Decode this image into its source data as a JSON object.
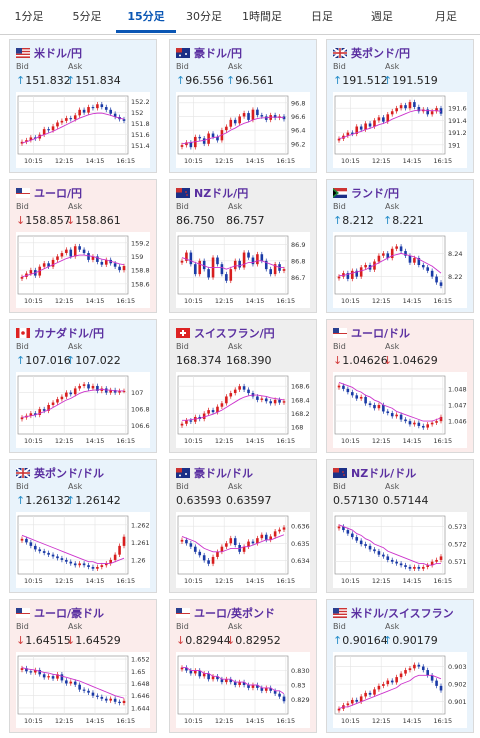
{
  "tabs": [
    {
      "label": "1分足"
    },
    {
      "label": "5分足"
    },
    {
      "label": "15分足",
      "active": true
    },
    {
      "label": "30分足"
    },
    {
      "label": "1時間足"
    },
    {
      "label": "日足"
    },
    {
      "label": "週足"
    },
    {
      "label": "月足"
    }
  ],
  "colors": {
    "up_candle": "#d81e1e",
    "down_candle": "#1a3aa6",
    "ma_line": "#cc33cc",
    "up_arrow": "#2a8fc9",
    "down_arrow": "#d23c3c"
  },
  "cards": [
    {
      "name": "米ドル/円",
      "flag": "us-flag",
      "trend": "up",
      "bid_label": "Bid",
      "ask_label": "Ask",
      "bid": "151.832",
      "ask": "151.834",
      "x_ticks": [
        "10:15",
        "12:15",
        "14:15",
        "16:15"
      ],
      "y_ticks": [
        "152.2",
        "152",
        "151.8",
        "151.6",
        "151.4"
      ],
      "ylim": [
        151.25,
        152.3
      ],
      "closes": [
        151.47,
        151.5,
        151.55,
        151.53,
        151.6,
        151.7,
        151.68,
        151.75,
        151.82,
        151.85,
        151.9,
        151.88,
        151.95,
        152.05,
        152.0,
        152.1,
        152.08,
        152.15,
        152.1,
        152.05,
        151.98,
        151.92,
        151.88,
        151.85
      ],
      "ma": [
        151.45,
        151.47,
        151.5,
        151.53,
        151.57,
        151.6,
        151.63,
        151.66,
        151.7,
        151.74,
        151.78,
        151.82,
        151.86,
        151.9,
        151.93,
        151.96,
        151.98,
        151.99,
        151.99,
        151.97,
        151.95,
        151.92,
        151.9,
        151.88
      ]
    },
    {
      "name": "豪ドル/円",
      "flag": "au-flag",
      "trend": "up",
      "bid_label": "Bid",
      "ask_label": "Ask",
      "bid": "96.556",
      "ask": "96.561",
      "x_ticks": [
        "10:15",
        "12:15",
        "14:15",
        "16:15"
      ],
      "y_ticks": [
        "96.8",
        "96.6",
        "96.4",
        "96.2"
      ],
      "ylim": [
        96.05,
        96.9
      ],
      "closes": [
        96.18,
        96.22,
        96.15,
        96.3,
        96.28,
        96.2,
        96.35,
        96.3,
        96.25,
        96.4,
        96.45,
        96.55,
        96.5,
        96.6,
        96.65,
        96.55,
        96.7,
        96.62,
        96.6,
        96.55,
        96.62,
        96.58,
        96.6,
        96.56
      ],
      "ma": [
        96.2,
        96.21,
        96.22,
        96.23,
        96.24,
        96.25,
        96.27,
        96.29,
        96.3,
        96.33,
        96.36,
        96.4,
        96.43,
        96.47,
        96.5,
        96.52,
        96.55,
        96.57,
        96.58,
        96.58,
        96.59,
        96.59,
        96.59,
        96.58
      ]
    },
    {
      "name": "英ポンド/円",
      "flag": "gb-flag",
      "trend": "up",
      "bid_label": "Bid",
      "ask_label": "Ask",
      "bid": "191.512",
      "ask": "191.519",
      "x_ticks": [
        "10:15",
        "12:15",
        "14:15",
        "16:15"
      ],
      "y_ticks": [
        "191.6",
        "191.4",
        "191.2",
        "191"
      ],
      "ylim": [
        190.85,
        191.8
      ],
      "closes": [
        191.1,
        191.15,
        191.2,
        191.18,
        191.3,
        191.25,
        191.35,
        191.3,
        191.4,
        191.45,
        191.38,
        191.5,
        191.55,
        191.6,
        191.65,
        191.6,
        191.7,
        191.62,
        191.55,
        191.58,
        191.5,
        191.55,
        191.6,
        191.51
      ],
      "ma": [
        191.1,
        191.12,
        191.15,
        191.17,
        191.2,
        191.22,
        191.25,
        191.27,
        191.3,
        191.33,
        191.35,
        191.38,
        191.42,
        191.45,
        191.48,
        191.51,
        191.54,
        191.56,
        191.57,
        191.57,
        191.56,
        191.56,
        191.56,
        191.55
      ]
    },
    {
      "name": "ユーロ/円",
      "flag": "eu-flag",
      "trend": "down",
      "bid_label": "Bid",
      "ask_label": "Ask",
      "bid": "158.857",
      "ask": "158.861",
      "x_ticks": [
        "10:15",
        "12:15",
        "14:15",
        "16:15"
      ],
      "y_ticks": [
        "159.2",
        "159",
        "158.8",
        "158.6"
      ],
      "ylim": [
        158.45,
        159.3
      ],
      "closes": [
        158.7,
        158.75,
        158.8,
        158.72,
        158.85,
        158.9,
        158.85,
        158.95,
        159.0,
        159.05,
        159.1,
        159.0,
        159.15,
        159.1,
        159.05,
        158.95,
        159.0,
        158.92,
        158.88,
        158.95,
        158.9,
        158.85,
        158.8,
        158.86
      ],
      "ma": [
        158.7,
        158.72,
        158.74,
        158.76,
        158.79,
        158.82,
        158.85,
        158.88,
        158.91,
        158.94,
        158.97,
        158.99,
        159.01,
        159.02,
        159.02,
        159.01,
        159.0,
        158.98,
        158.96,
        158.95,
        158.93,
        158.91,
        158.89,
        158.88
      ]
    },
    {
      "name": "NZドル/円",
      "flag": "nz-flag",
      "trend": "flat",
      "bid_label": "Bid",
      "ask_label": "Ask",
      "bid": "86.750",
      "ask": "86.757",
      "x_ticks": [
        "10:15",
        "12:15",
        "14:15",
        "16:15"
      ],
      "y_ticks": [
        "86.9",
        "86.8",
        "86.7"
      ],
      "ylim": [
        86.6,
        86.95
      ],
      "closes": [
        86.8,
        86.85,
        86.78,
        86.72,
        86.8,
        86.75,
        86.7,
        86.82,
        86.78,
        86.72,
        86.68,
        86.75,
        86.8,
        86.76,
        86.85,
        86.82,
        86.78,
        86.84,
        86.8,
        86.75,
        86.72,
        86.78,
        86.74,
        86.75
      ],
      "ma": [
        86.82,
        86.81,
        86.8,
        86.79,
        86.78,
        86.77,
        86.76,
        86.76,
        86.76,
        86.76,
        86.75,
        86.76,
        86.77,
        86.77,
        86.78,
        86.79,
        86.79,
        86.8,
        86.8,
        86.79,
        86.78,
        86.77,
        86.76,
        86.76
      ]
    },
    {
      "name": "ランド/円",
      "flag": "za-flag",
      "trend": "up",
      "bid_label": "Bid",
      "ask_label": "Ask",
      "bid": "8.212",
      "ask": "8.221",
      "x_ticks": [
        "10:15",
        "12:15",
        "14:15",
        "16:15"
      ],
      "y_ticks": [
        "8.24",
        "8.22"
      ],
      "ylim": [
        8.205,
        8.255
      ],
      "closes": [
        8.22,
        8.223,
        8.218,
        8.225,
        8.22,
        8.228,
        8.23,
        8.226,
        8.233,
        8.238,
        8.24,
        8.236,
        8.244,
        8.246,
        8.242,
        8.238,
        8.232,
        8.236,
        8.23,
        8.228,
        8.225,
        8.22,
        8.215,
        8.212
      ],
      "ma": [
        8.221,
        8.221,
        8.222,
        8.223,
        8.224,
        8.225,
        8.226,
        8.228,
        8.23,
        8.232,
        8.234,
        8.236,
        8.238,
        8.239,
        8.24,
        8.239,
        8.238,
        8.237,
        8.235,
        8.233,
        8.231,
        8.229,
        8.226,
        8.223
      ]
    },
    {
      "name": "カナダドル/円",
      "flag": "ca-flag",
      "trend": "up",
      "bid_label": "Bid",
      "ask_label": "Ask",
      "bid": "107.016",
      "ask": "107.022",
      "x_ticks": [
        "10:15",
        "12:15",
        "14:15",
        "16:15"
      ],
      "y_ticks": [
        "107",
        "106.8",
        "106.6"
      ],
      "ylim": [
        106.5,
        107.2
      ],
      "closes": [
        106.7,
        106.72,
        106.75,
        106.73,
        106.8,
        106.78,
        106.85,
        106.88,
        106.92,
        106.95,
        107.0,
        106.98,
        107.05,
        107.08,
        107.1,
        107.05,
        107.08,
        107.02,
        107.05,
        107.0,
        107.03,
        107.0,
        107.02,
        107.02
      ],
      "ma": [
        106.7,
        106.71,
        106.72,
        106.73,
        106.75,
        106.77,
        106.79,
        106.82,
        106.85,
        106.88,
        106.91,
        106.93,
        106.96,
        106.99,
        107.01,
        107.02,
        107.03,
        107.03,
        107.04,
        107.03,
        107.03,
        107.02,
        107.02,
        107.02
      ]
    },
    {
      "name": "スイスフラン/円",
      "flag": "ch-flag",
      "trend": "flat",
      "bid_label": "Bid",
      "ask_label": "Ask",
      "bid": "168.374",
      "ask": "168.390",
      "x_ticks": [
        "10:15",
        "12:15",
        "14:15",
        "16:15"
      ],
      "y_ticks": [
        "168.6",
        "168.4",
        "168.2",
        "168"
      ],
      "ylim": [
        167.9,
        168.75
      ],
      "closes": [
        168.05,
        168.1,
        168.08,
        168.15,
        168.12,
        168.2,
        168.25,
        168.22,
        168.3,
        168.35,
        168.45,
        168.5,
        168.55,
        168.6,
        168.55,
        168.5,
        168.45,
        168.4,
        168.42,
        168.38,
        168.35,
        168.4,
        168.36,
        168.38
      ],
      "ma": [
        168.1,
        168.1,
        168.11,
        168.12,
        168.13,
        168.15,
        168.17,
        168.19,
        168.22,
        168.25,
        168.29,
        168.33,
        168.37,
        168.41,
        168.44,
        168.46,
        168.47,
        168.47,
        168.46,
        168.45,
        168.43,
        168.42,
        168.41,
        168.4
      ]
    },
    {
      "name": "ユーロ/ドル",
      "flag": "eu-flag",
      "trend": "down",
      "bid_label": "Bid",
      "ask_label": "Ask",
      "bid": "1.04626",
      "ask": "1.04629",
      "x_ticks": [
        "10:15",
        "12:15",
        "14:15",
        "16:15"
      ],
      "y_ticks": [
        "1.048",
        "1.047",
        "1.046"
      ],
      "ylim": [
        1.0452,
        1.0488
      ],
      "closes": [
        1.0482,
        1.048,
        1.0478,
        1.0476,
        1.0474,
        1.0475,
        1.0471,
        1.047,
        1.0468,
        1.047,
        1.0466,
        1.0465,
        1.0463,
        1.0464,
        1.0461,
        1.046,
        1.0458,
        1.0459,
        1.0457,
        1.0456,
        1.0458,
        1.0459,
        1.046,
        1.04626
      ],
      "ma": [
        1.0484,
        1.0483,
        1.0482,
        1.0481,
        1.0479,
        1.0478,
        1.0476,
        1.0475,
        1.0473,
        1.0472,
        1.047,
        1.0469,
        1.0468,
        1.0466,
        1.0465,
        1.0464,
        1.0463,
        1.0462,
        1.0461,
        1.046,
        1.046,
        1.046,
        1.0461,
        1.0462
      ]
    },
    {
      "name": "英ポンド/ドル",
      "flag": "gb-flag",
      "trend": "up",
      "bid_label": "Bid",
      "ask_label": "Ask",
      "bid": "1.26132",
      "ask": "1.26142",
      "x_ticks": [
        "10:15",
        "12:15",
        "14:15",
        "16:15"
      ],
      "y_ticks": [
        "1.262",
        "1.261",
        "1.26"
      ],
      "ylim": [
        1.2592,
        1.2625
      ],
      "closes": [
        1.2612,
        1.261,
        1.2608,
        1.2606,
        1.2605,
        1.2604,
        1.2603,
        1.2602,
        1.2601,
        1.26,
        1.2599,
        1.2598,
        1.2597,
        1.2598,
        1.2597,
        1.2596,
        1.2595,
        1.2596,
        1.2597,
        1.2598,
        1.26,
        1.2603,
        1.2608,
        1.26132
      ],
      "ma": [
        1.2614,
        1.2613,
        1.2612,
        1.2611,
        1.261,
        1.2609,
        1.2608,
        1.2607,
        1.2606,
        1.2605,
        1.2604,
        1.2603,
        1.2602,
        1.2601,
        1.26,
        1.2599,
        1.2599,
        1.2598,
        1.2598,
        1.2598,
        1.2598,
        1.2599,
        1.26,
        1.2601
      ]
    },
    {
      "name": "豪ドル/ドル",
      "flag": "au-flag",
      "trend": "flat",
      "bid_label": "Bid",
      "ask_label": "Ask",
      "bid": "0.63593",
      "ask": "0.63597",
      "x_ticks": [
        "10:15",
        "12:15",
        "14:15",
        "16:15"
      ],
      "y_ticks": [
        "0.636",
        "0.635",
        "0.634"
      ],
      "ylim": [
        0.6332,
        0.6366
      ],
      "closes": [
        0.6352,
        0.635,
        0.6348,
        0.6345,
        0.6343,
        0.634,
        0.6338,
        0.6342,
        0.6345,
        0.6348,
        0.635,
        0.6353,
        0.6349,
        0.6345,
        0.6348,
        0.6351,
        0.635,
        0.6353,
        0.6355,
        0.6352,
        0.6354,
        0.6357,
        0.6358,
        0.63593
      ],
      "ma": [
        0.6354,
        0.6353,
        0.6352,
        0.6351,
        0.6349,
        0.6347,
        0.6346,
        0.6345,
        0.6345,
        0.6345,
        0.6346,
        0.6347,
        0.6347,
        0.6347,
        0.6348,
        0.6348,
        0.6349,
        0.635,
        0.6351,
        0.6352,
        0.6352,
        0.6353,
        0.6354,
        0.6355
      ]
    },
    {
      "name": "NZドル/ドル",
      "flag": "nz-flag",
      "trend": "flat",
      "bid_label": "Bid",
      "ask_label": "Ask",
      "bid": "0.57130",
      "ask": "0.57144",
      "x_ticks": [
        "10:15",
        "12:15",
        "14:15",
        "16:15"
      ],
      "y_ticks": [
        "0.573",
        "0.572",
        "0.571"
      ],
      "ylim": [
        0.5703,
        0.5736
      ],
      "closes": [
        0.573,
        0.5728,
        0.5726,
        0.5724,
        0.5722,
        0.572,
        0.5719,
        0.5717,
        0.5716,
        0.5714,
        0.5713,
        0.5711,
        0.571,
        0.5709,
        0.5708,
        0.5707,
        0.5706,
        0.5707,
        0.5706,
        0.5707,
        0.5708,
        0.571,
        0.5711,
        0.5713
      ],
      "ma": [
        0.5731,
        0.573,
        0.5729,
        0.5728,
        0.5726,
        0.5725,
        0.5723,
        0.5722,
        0.572,
        0.5719,
        0.5718,
        0.5716,
        0.5715,
        0.5714,
        0.5713,
        0.5712,
        0.5711,
        0.571,
        0.5709,
        0.5709,
        0.5708,
        0.5708,
        0.5709,
        0.5709
      ]
    },
    {
      "name": "ユーロ/豪ドル",
      "flag": "eu-flag",
      "trend": "down",
      "bid_label": "Bid",
      "ask_label": "Ask",
      "bid": "1.64515",
      "ask": "1.64529",
      "x_ticks": [
        "10:15",
        "12:15",
        "14:15",
        "16:15"
      ],
      "y_ticks": [
        "1.652",
        "1.65",
        "1.648",
        "1.646",
        "1.644"
      ],
      "ylim": [
        1.643,
        1.6525
      ],
      "closes": [
        1.6505,
        1.65,
        1.6498,
        1.6502,
        1.6495,
        1.649,
        1.6492,
        1.6488,
        1.6495,
        1.6485,
        1.648,
        1.6483,
        1.6478,
        1.647,
        1.6468,
        1.6465,
        1.646,
        1.6458,
        1.6455,
        1.6452,
        1.6455,
        1.645,
        1.6448,
        1.64515
      ],
      "ma": [
        1.6506,
        1.6504,
        1.6503,
        1.6502,
        1.65,
        1.6498,
        1.6497,
        1.6495,
        1.6494,
        1.6492,
        1.649,
        1.6488,
        1.6486,
        1.6484,
        1.6481,
        1.6478,
        1.6475,
        1.6472,
        1.6469,
        1.6466,
        1.6463,
        1.646,
        1.6458,
        1.6456
      ]
    },
    {
      "name": "ユーロ/英ポンド",
      "flag": "eu-flag",
      "trend": "down",
      "bid_label": "Bid",
      "ask_label": "Ask",
      "bid": "0.82944",
      "ask": "0.82952",
      "x_ticks": [
        "10:15",
        "12:15",
        "14:15",
        "16:15"
      ],
      "y_ticks": [
        "0.8305",
        "0.83",
        "0.8295"
      ],
      "ylim": [
        0.829,
        0.831
      ],
      "closes": [
        0.8306,
        0.8305,
        0.8304,
        0.8305,
        0.8303,
        0.8304,
        0.8302,
        0.8303,
        0.8302,
        0.8301,
        0.8302,
        0.8301,
        0.83,
        0.8301,
        0.83,
        0.8299,
        0.83,
        0.8299,
        0.8298,
        0.8299,
        0.8298,
        0.8297,
        0.8296,
        0.82944
      ],
      "ma": [
        0.8306,
        0.8306,
        0.8305,
        0.8305,
        0.8305,
        0.8304,
        0.8304,
        0.8303,
        0.8303,
        0.8302,
        0.8302,
        0.8302,
        0.8301,
        0.8301,
        0.8301,
        0.83,
        0.83,
        0.83,
        0.8299,
        0.8299,
        0.8299,
        0.8298,
        0.8298,
        0.8297
      ]
    },
    {
      "name": "米ドル/スイスフラン",
      "flag": "us-flag",
      "trend": "up",
      "bid_label": "Bid",
      "ask_label": "Ask",
      "bid": "0.90164",
      "ask": "0.90179",
      "x_ticks": [
        "10:15",
        "12:15",
        "14:15",
        "16:15"
      ],
      "y_ticks": [
        "0.903",
        "0.902",
        "0.901"
      ],
      "ylim": [
        0.9003,
        0.9036
      ],
      "closes": [
        0.9006,
        0.9008,
        0.9009,
        0.9011,
        0.901,
        0.9013,
        0.9015,
        0.9014,
        0.9017,
        0.9019,
        0.902,
        0.9022,
        0.9021,
        0.9024,
        0.9026,
        0.9028,
        0.9029,
        0.9031,
        0.903,
        0.9028,
        0.9025,
        0.9022,
        0.9019,
        0.90164
      ],
      "ma": [
        0.9006,
        0.9007,
        0.9007,
        0.9008,
        0.9009,
        0.901,
        0.9011,
        0.9012,
        0.9013,
        0.9014,
        0.9015,
        0.9016,
        0.9017,
        0.9018,
        0.902,
        0.9021,
        0.9022,
        0.9024,
        0.9025,
        0.9025,
        0.9025,
        0.9025,
        0.9024,
        0.9023
      ]
    }
  ]
}
